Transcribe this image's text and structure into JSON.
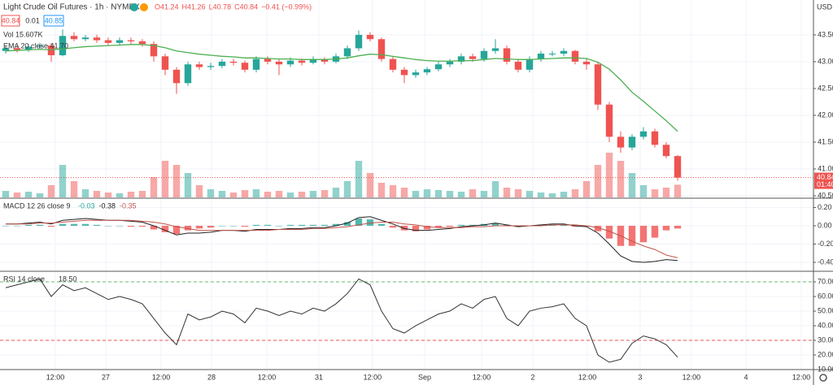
{
  "chart_data": [
    {
      "type": "candlestick",
      "title": "Light Crude Oil Futures · 1h · NYMEX",
      "ohlc_legend": [
        "O41.24",
        "H41.26",
        "L40.78",
        "C40.84",
        "−0.41 (−0.99%)"
      ],
      "bid": 40.84,
      "spread": 0.01,
      "ask": 40.85,
      "volume_legend": "Vol 15.607K",
      "ema_legend": "EMA 20 close 41.70",
      "currency": "USD",
      "last_price": 40.84,
      "countdown": "01:40",
      "up_color": "#26a69a",
      "down_color": "#ef5350",
      "open": [
        43.2,
        43.25,
        43.22,
        43.28,
        43.3,
        43.12,
        43.48,
        43.42,
        43.45,
        43.4,
        43.35,
        43.4,
        43.38,
        43.33,
        43.1,
        42.85,
        42.6,
        42.95,
        42.9,
        42.92,
        43.0,
        42.98,
        42.85,
        43.05,
        43.0,
        42.95,
        43.02,
        42.98,
        43.05,
        43.0,
        43.1,
        43.25,
        43.5,
        43.42,
        43.05,
        42.85,
        42.75,
        42.8,
        42.86,
        42.95,
        43.0,
        43.1,
        43.05,
        43.2,
        43.25,
        43.0,
        42.85,
        43.05,
        43.15,
        43.15,
        43.2,
        43.0,
        42.95,
        42.2,
        41.6,
        41.4,
        41.6,
        41.7,
        41.45,
        41.24
      ],
      "high": [
        43.3,
        43.3,
        43.33,
        43.35,
        43.35,
        43.6,
        43.55,
        43.5,
        43.5,
        43.45,
        43.45,
        43.45,
        43.42,
        43.38,
        43.15,
        42.9,
        43.0,
        43.0,
        42.98,
        43.05,
        43.05,
        43.02,
        43.1,
        43.1,
        43.05,
        43.08,
        43.06,
        43.1,
        43.08,
        43.15,
        43.3,
        43.58,
        43.55,
        43.45,
        43.1,
        42.9,
        42.85,
        42.9,
        43.0,
        43.05,
        43.15,
        43.15,
        43.25,
        43.42,
        43.3,
        43.05,
        43.1,
        43.2,
        43.2,
        43.25,
        43.22,
        43.05,
        43.0,
        42.25,
        41.7,
        41.65,
        41.78,
        41.75,
        41.5,
        41.26
      ],
      "low": [
        43.15,
        43.17,
        43.18,
        43.24,
        43.0,
        43.1,
        43.38,
        43.38,
        43.35,
        43.3,
        43.3,
        43.33,
        43.28,
        43.0,
        42.75,
        42.4,
        42.55,
        42.85,
        42.85,
        42.88,
        42.93,
        42.8,
        42.8,
        42.95,
        42.75,
        42.9,
        42.93,
        42.95,
        42.95,
        42.97,
        43.05,
        43.2,
        43.38,
        43.0,
        42.8,
        42.6,
        42.7,
        42.75,
        42.82,
        42.9,
        42.95,
        43.0,
        43.0,
        43.15,
        42.95,
        42.8,
        42.8,
        43.0,
        43.1,
        43.1,
        42.95,
        42.85,
        42.1,
        41.5,
        41.3,
        41.35,
        41.55,
        41.4,
        41.2,
        40.78
      ],
      "close": [
        43.25,
        43.22,
        43.28,
        43.3,
        43.12,
        43.48,
        43.42,
        43.45,
        43.4,
        43.35,
        43.4,
        43.38,
        43.33,
        43.1,
        42.85,
        42.6,
        42.95,
        42.9,
        42.92,
        43.0,
        42.98,
        42.85,
        43.05,
        43.0,
        42.95,
        43.02,
        42.98,
        43.05,
        43.0,
        43.1,
        43.25,
        43.5,
        43.42,
        43.05,
        42.85,
        42.75,
        42.8,
        42.86,
        42.95,
        43.0,
        43.1,
        43.05,
        43.2,
        43.25,
        43.0,
        42.85,
        43.05,
        43.15,
        43.15,
        43.2,
        43.0,
        42.95,
        42.2,
        41.6,
        41.4,
        41.6,
        41.7,
        41.45,
        41.24,
        40.84
      ],
      "series": [
        {
          "name": "EMA 20 close",
          "color": "#4caf50",
          "values": [
            43.2,
            43.21,
            43.22,
            43.23,
            43.22,
            43.24,
            43.26,
            43.28,
            43.29,
            43.3,
            43.31,
            43.32,
            43.32,
            43.3,
            43.26,
            43.2,
            43.17,
            43.14,
            43.12,
            43.1,
            43.09,
            43.07,
            43.07,
            43.06,
            43.05,
            43.05,
            43.04,
            43.04,
            43.04,
            43.05,
            43.07,
            43.11,
            43.14,
            43.13,
            43.1,
            43.07,
            43.04,
            43.02,
            43.01,
            43.01,
            43.02,
            43.02,
            43.04,
            43.06,
            43.05,
            43.04,
            43.04,
            43.05,
            43.06,
            43.07,
            43.07,
            43.06,
            42.99,
            42.86,
            42.66,
            42.43,
            42.26,
            42.08,
            41.9,
            41.7
          ]
        }
      ],
      "ylim": [
        40.47,
        44.15
      ],
      "yticks": [
        {
          "value": 40.5,
          "label": "40.50"
        },
        {
          "value": 41,
          "label": "41.00"
        },
        {
          "value": 41.5,
          "label": "41.50"
        },
        {
          "value": 42,
          "label": "42.00"
        },
        {
          "value": 42.5,
          "label": "42.50"
        },
        {
          "value": 43,
          "label": "43.00"
        },
        {
          "value": 43.5,
          "label": "43.50"
        }
      ],
      "xlim": [
        -0.5,
        70.93
      ],
      "xticks": [
        {
          "value": 4.36,
          "label": "12:00"
        },
        {
          "value": 8.79,
          "label": "27"
        },
        {
          "value": 13.64,
          "label": "12:00"
        },
        {
          "value": 18.07,
          "label": "28"
        },
        {
          "value": 22.93,
          "label": "12:00"
        },
        {
          "value": 27.5,
          "label": "31"
        },
        {
          "value": 32.21,
          "label": "12:00"
        },
        {
          "value": 36.79,
          "label": "Sep"
        },
        {
          "value": 41.79,
          "label": "12:00"
        },
        {
          "value": 46.29,
          "label": "2"
        },
        {
          "value": 51.07,
          "label": "12:00"
        },
        {
          "value": 55.71,
          "label": "3"
        },
        {
          "value": 60.21,
          "label": "12:00"
        },
        {
          "value": 65,
          "label": "4"
        },
        {
          "value": 69.86,
          "label": "12:00"
        }
      ],
      "grid": true
    },
    {
      "type": "volume",
      "values": [
        8,
        6,
        7,
        5,
        15,
        40,
        20,
        10,
        8,
        6,
        5,
        7,
        8,
        25,
        45,
        40,
        30,
        15,
        10,
        8,
        6,
        9,
        10,
        7,
        8,
        6,
        7,
        8,
        9,
        12,
        20,
        45,
        30,
        18,
        15,
        12,
        8,
        10,
        9,
        8,
        7,
        10,
        8,
        20,
        12,
        10,
        8,
        6,
        5,
        7,
        10,
        20,
        40,
        55,
        45,
        30,
        15,
        10,
        12,
        15.607
      ],
      "ylim": [
        0,
        80
      ]
    },
    {
      "type": "macd",
      "title": "MACD 12 26 close 9",
      "legend_values": [
        -0.03,
        -0.38,
        -0.35
      ],
      "series": [
        {
          "name": "Histogram",
          "color": "#26a69a",
          "negative_color": "#ef5350",
          "values": [
            0,
            0,
            0.01,
            0.01,
            -0.01,
            0.02,
            0.02,
            0.02,
            0.01,
            0,
            0,
            -0.01,
            -0.01,
            -0.04,
            -0.07,
            -0.09,
            -0.05,
            -0.03,
            -0.02,
            0,
            0,
            -0.01,
            0.01,
            0.01,
            0,
            0.01,
            0.01,
            0.01,
            0.01,
            0.02,
            0.04,
            0.08,
            0.07,
            0.02,
            -0.02,
            -0.05,
            -0.06,
            -0.04,
            -0.02,
            -0.01,
            0.01,
            0.01,
            0.02,
            0.03,
            0.01,
            -0.01,
            0,
            0.01,
            0.01,
            0.01,
            -0.01,
            -0.01,
            -0.06,
            -0.14,
            -0.22,
            -0.22,
            -0.18,
            -0.13,
            -0.05,
            -0.03
          ]
        },
        {
          "name": "MACD",
          "color": "#222222",
          "values": [
            0.02,
            0.02,
            0.03,
            0.04,
            0.02,
            0.06,
            0.07,
            0.08,
            0.07,
            0.06,
            0.06,
            0.05,
            0.04,
            0,
            -0.05,
            -0.1,
            -0.08,
            -0.08,
            -0.07,
            -0.05,
            -0.05,
            -0.06,
            -0.04,
            -0.04,
            -0.04,
            -0.03,
            -0.03,
            -0.02,
            -0.02,
            0,
            0.03,
            0.09,
            0.1,
            0.06,
            0.02,
            -0.03,
            -0.05,
            -0.05,
            -0.04,
            -0.03,
            -0.01,
            0,
            0.01,
            0.03,
            0.01,
            -0.01,
            0,
            0.01,
            0.02,
            0.02,
            0,
            -0.01,
            -0.08,
            -0.2,
            -0.33,
            -0.39,
            -0.4,
            -0.39,
            -0.37,
            -0.38
          ]
        },
        {
          "name": "Signal",
          "color": "#c0544a",
          "values": [
            0.02,
            0.02,
            0.02,
            0.03,
            0.03,
            0.04,
            0.05,
            0.06,
            0.06,
            0.06,
            0.06,
            0.06,
            0.05,
            0.04,
            0.02,
            -0.01,
            -0.03,
            -0.05,
            -0.05,
            -0.05,
            -0.05,
            -0.05,
            -0.05,
            -0.05,
            -0.04,
            -0.04,
            -0.04,
            -0.03,
            -0.03,
            -0.02,
            -0.01,
            0.01,
            0.03,
            0.04,
            0.04,
            0.02,
            0.01,
            -0.01,
            -0.02,
            -0.02,
            -0.02,
            -0.01,
            -0.01,
            0,
            0,
            0,
            0,
            0,
            0.01,
            0.01,
            0.01,
            0,
            -0.02,
            -0.06,
            -0.11,
            -0.17,
            -0.22,
            -0.26,
            -0.32,
            -0.35
          ]
        }
      ],
      "ylim": [
        -0.489,
        0.293
      ],
      "yticks": [
        {
          "value": -0.4,
          "label": "-0.40"
        },
        {
          "value": -0.2,
          "label": "-0.20"
        },
        {
          "value": 0,
          "label": "0.00"
        },
        {
          "value": 0.2,
          "label": "0.20"
        }
      ]
    },
    {
      "type": "rsi",
      "title": "RSI 14 close",
      "legend_value": 18.5,
      "legend_value_label": "18.50",
      "color": "#333333",
      "values": [
        66,
        68,
        70,
        72,
        60,
        68,
        64,
        66,
        62,
        58,
        60,
        58,
        55,
        45,
        35,
        27,
        48,
        44,
        46,
        50,
        48,
        42,
        52,
        50,
        47,
        50,
        48,
        52,
        50,
        55,
        62,
        72,
        68,
        50,
        38,
        35,
        40,
        44,
        48,
        50,
        55,
        52,
        58,
        60,
        45,
        40,
        50,
        52,
        53,
        55,
        45,
        40,
        20,
        15,
        17,
        28,
        33,
        31,
        27,
        18.5
      ],
      "upper_band": 70,
      "upper_color": "#66bb6a",
      "lower_band": 30,
      "lower_color": "#ef5350",
      "ylim": [
        10,
        76.7
      ],
      "yticks": [
        {
          "value": 10,
          "label": "10.00"
        },
        {
          "value": 20,
          "label": "20.00"
        },
        {
          "value": 30,
          "label": "30.00"
        },
        {
          "value": 40,
          "label": "40.00"
        },
        {
          "value": 50,
          "label": "50.00"
        },
        {
          "value": 60,
          "label": "60.00"
        },
        {
          "value": 70,
          "label": "70.00"
        }
      ]
    }
  ]
}
